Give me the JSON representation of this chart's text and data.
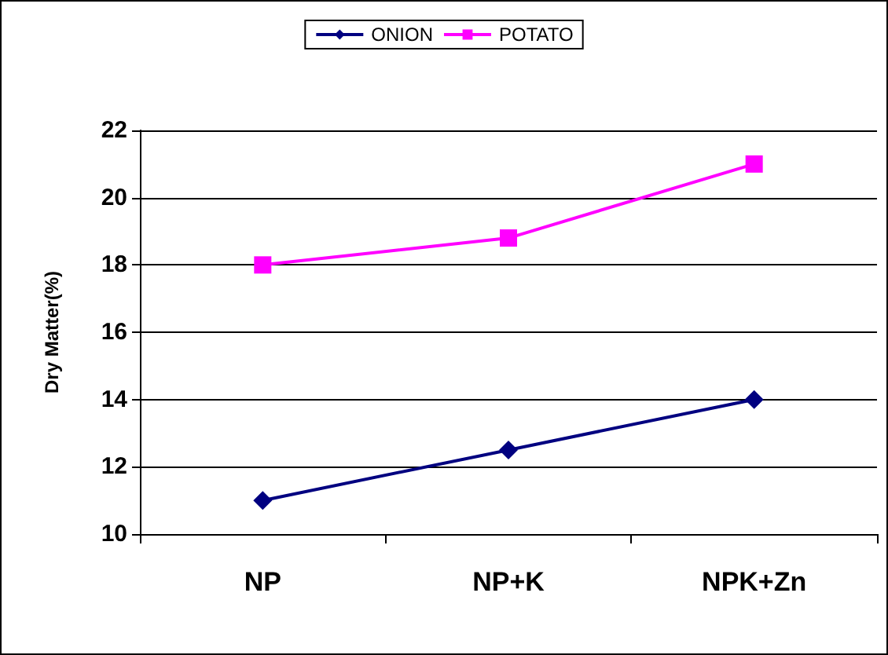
{
  "chart_data": {
    "type": "line",
    "ylabel": "Dry Matter(%)",
    "categories": [
      "NP",
      "NP+K",
      "NPK+Zn"
    ],
    "series": [
      {
        "name": "ONION",
        "color": "#000080",
        "marker": "diamond",
        "values": [
          11,
          12.5,
          14
        ]
      },
      {
        "name": "POTATO",
        "color": "#ff00ff",
        "marker": "square",
        "values": [
          18,
          18.8,
          21
        ]
      }
    ],
    "ylim": [
      10,
      22
    ],
    "yticks": [
      10,
      12,
      14,
      16,
      18,
      20,
      22
    ],
    "grid": "y",
    "legend": "top",
    "line_style": "solid"
  }
}
